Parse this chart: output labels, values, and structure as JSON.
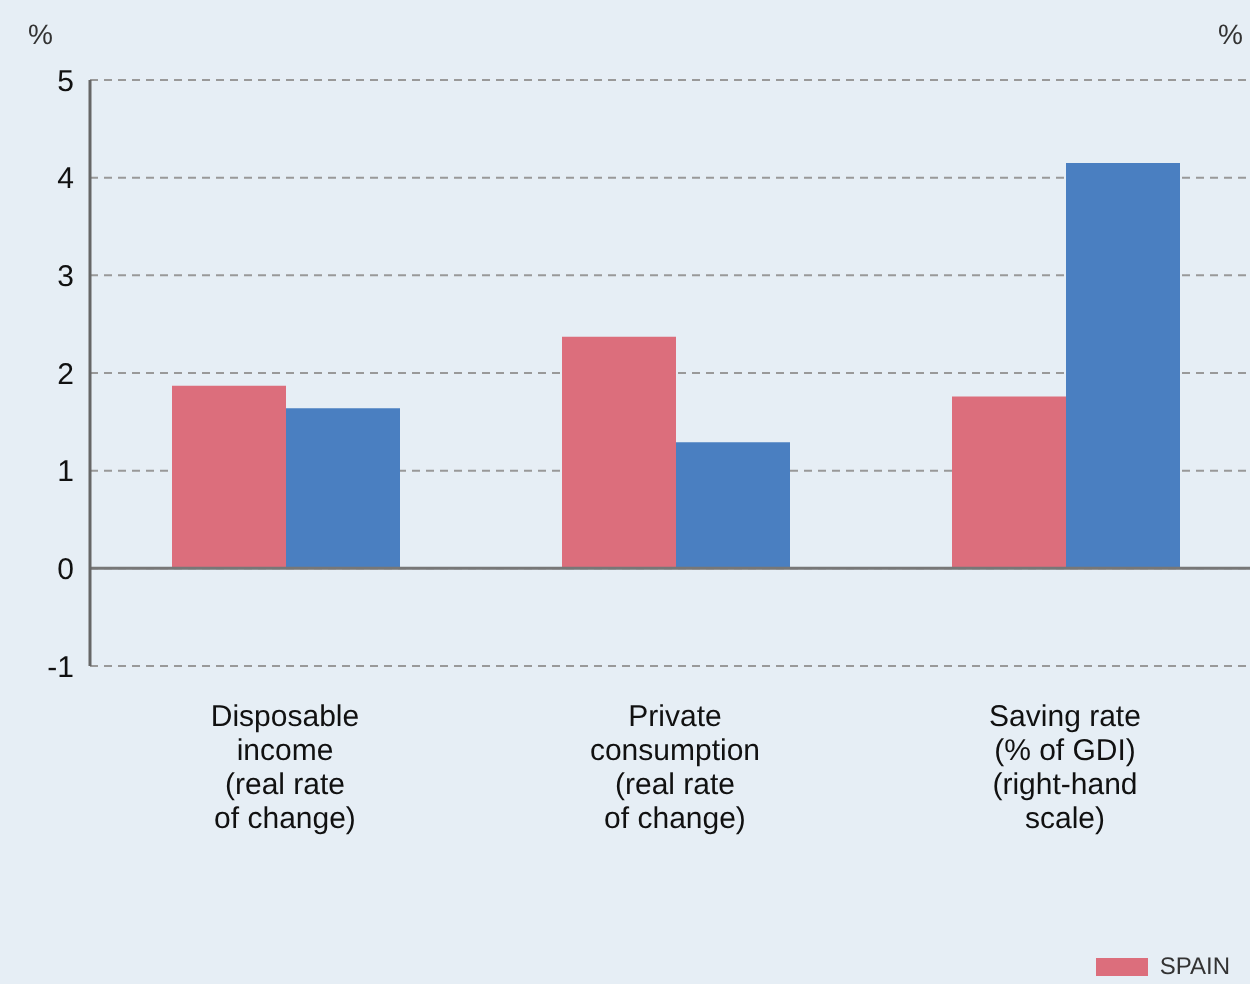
{
  "chart_data": {
    "type": "bar",
    "ylabel": "%",
    "y2label": "%",
    "categories": [
      "Disposable income (real rate of change)",
      "Private consumption (real rate of change)",
      "Saving rate (% of GDI) (right-hand scale)"
    ],
    "series": [
      {
        "name": "SPAIN",
        "color": "#dc6e7c",
        "values": [
          1.87,
          2.37,
          1.76
        ]
      },
      {
        "color": "#4a7fc1",
        "values": [
          1.64,
          1.29,
          4.15
        ]
      }
    ],
    "ylim": [
      -1,
      5
    ],
    "yticks": [
      -1,
      0,
      1,
      2,
      3,
      4,
      5
    ],
    "grid": "y",
    "legend": "bottom right"
  }
}
